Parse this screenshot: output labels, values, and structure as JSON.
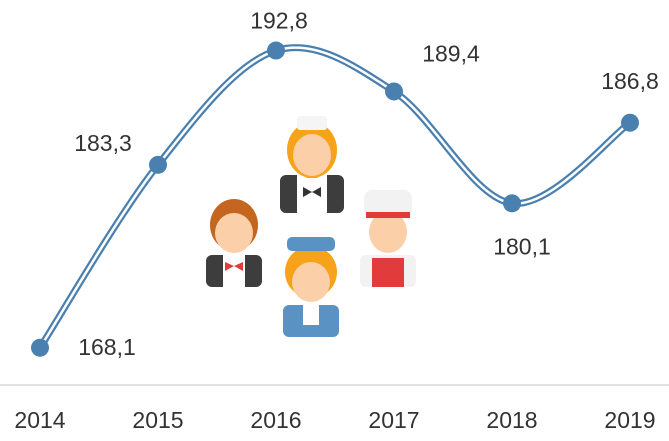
{
  "chart_data": {
    "type": "line",
    "categories": [
      "2014",
      "2015",
      "2016",
      "2017",
      "2018",
      "2019"
    ],
    "values": [
      168.1,
      183.3,
      192.8,
      189.4,
      180.1,
      186.8
    ],
    "value_labels": [
      "168,1",
      "183,3",
      "192,8",
      "189,4",
      "180,1",
      "186,8"
    ],
    "color": "#4a80b0",
    "ylim": [
      165,
      197
    ]
  }
}
